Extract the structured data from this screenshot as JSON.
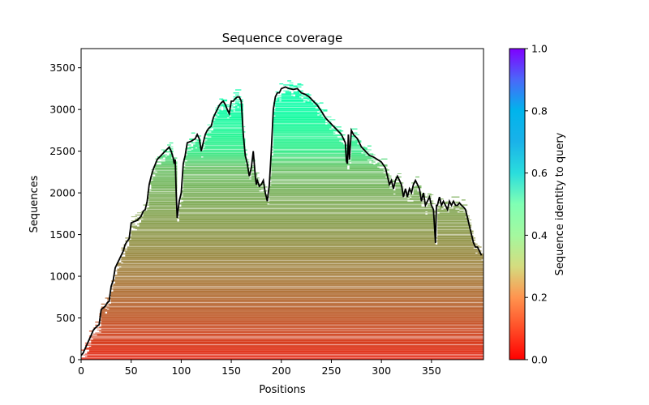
{
  "chart_data": {
    "type": "heatmap",
    "title": "Sequence coverage",
    "xlabel": "Positions",
    "ylabel": "Sequences",
    "xlim": [
      0,
      402
    ],
    "ylim": [
      0,
      3730
    ],
    "x_ticks": [
      0,
      50,
      100,
      150,
      200,
      250,
      300,
      350
    ],
    "x_tick_labels": [
      "0",
      "50",
      "100",
      "150",
      "200",
      "250",
      "300",
      "350"
    ],
    "y_ticks": [
      0,
      500,
      1000,
      1500,
      2000,
      2500,
      3000,
      3500
    ],
    "y_tick_labels": [
      "0",
      "500",
      "1000",
      "1500",
      "2000",
      "2500",
      "3000",
      "3500"
    ],
    "grid": false,
    "colorbar": {
      "label": "Sequence identity to query",
      "range": [
        0,
        1
      ],
      "ticks": [
        0.0,
        0.2,
        0.4,
        0.6,
        0.8,
        1.0
      ],
      "tick_labels": [
        "0.0",
        "0.2",
        "0.4",
        "0.6",
        "0.8",
        "1.0"
      ],
      "colormap": "rainbow"
    },
    "identity_by_sequence_rank": {
      "sequences": [
        0,
        500,
        1000,
        1500,
        2000,
        2300,
        2500,
        3000,
        3700
      ],
      "identity": [
        0.05,
        0.12,
        0.17,
        0.21,
        0.25,
        0.28,
        0.38,
        0.46,
        0.5
      ]
    },
    "coverage_line": {
      "name": "coverage",
      "color": "#000000",
      "x": [
        0,
        2,
        5,
        8,
        10,
        12,
        14,
        16,
        18,
        20,
        22,
        24,
        26,
        28,
        30,
        32,
        34,
        36,
        38,
        40,
        42,
        44,
        46,
        48,
        50,
        52,
        56,
        60,
        62,
        64,
        66,
        68,
        70,
        72,
        76,
        80,
        84,
        88,
        90,
        92,
        93,
        94,
        95,
        96,
        98,
        100,
        102,
        104,
        106,
        110,
        114,
        116,
        118,
        120,
        122,
        124,
        126,
        128,
        130,
        132,
        134,
        136,
        138,
        140,
        142,
        144,
        146,
        148,
        150,
        152,
        154,
        156,
        158,
        160,
        162,
        164,
        166,
        168,
        170,
        172,
        174,
        175,
        176,
        178,
        180,
        182,
        184,
        186,
        188,
        190,
        192,
        194,
        196,
        198,
        200,
        204,
        208,
        212,
        216,
        220,
        224,
        228,
        232,
        236,
        240,
        244,
        248,
        252,
        256,
        260,
        262,
        264,
        265,
        266,
        267,
        268,
        270,
        272,
        276,
        280,
        284,
        288,
        292,
        296,
        300,
        304,
        306,
        308,
        310,
        312,
        314,
        316,
        318,
        320,
        322,
        324,
        326,
        328,
        330,
        332,
        334,
        336,
        338,
        340,
        342,
        344,
        346,
        348,
        350,
        352,
        354,
        355,
        356,
        358,
        360,
        362,
        364,
        366,
        368,
        370,
        372,
        374,
        376,
        378,
        380,
        382,
        384,
        386,
        388,
        390,
        392,
        394,
        396,
        398,
        400
      ],
      "y": [
        50,
        80,
        160,
        240,
        290,
        350,
        380,
        400,
        420,
        600,
        620,
        640,
        680,
        700,
        880,
        950,
        1100,
        1150,
        1200,
        1250,
        1300,
        1380,
        1420,
        1450,
        1640,
        1650,
        1670,
        1720,
        1780,
        1800,
        1900,
        2100,
        2200,
        2280,
        2400,
        2450,
        2500,
        2550,
        2500,
        2420,
        2350,
        2400,
        2000,
        1700,
        1900,
        2000,
        2350,
        2450,
        2600,
        2620,
        2650,
        2700,
        2650,
        2500,
        2600,
        2700,
        2750,
        2780,
        2800,
        2900,
        2950,
        3000,
        3050,
        3080,
        3100,
        3060,
        3000,
        2950,
        3100,
        3100,
        3130,
        3150,
        3150,
        3100,
        2700,
        2450,
        2350,
        2200,
        2300,
        2500,
        2200,
        2100,
        2150,
        2080,
        2100,
        2150,
        2000,
        1900,
        2100,
        2500,
        3000,
        3150,
        3200,
        3200,
        3250,
        3270,
        3250,
        3240,
        3250,
        3200,
        3180,
        3150,
        3100,
        3050,
        2980,
        2900,
        2850,
        2800,
        2750,
        2700,
        2650,
        2600,
        2380,
        2350,
        2700,
        2400,
        2750,
        2700,
        2650,
        2550,
        2500,
        2450,
        2430,
        2400,
        2370,
        2300,
        2200,
        2100,
        2150,
        2050,
        2150,
        2200,
        2150,
        2100,
        1950,
        2050,
        1950,
        2050,
        2000,
        2100,
        2150,
        2100,
        2050,
        1900,
        2000,
        1850,
        1900,
        1950,
        1850,
        1800,
        1400,
        1850,
        1850,
        1950,
        1850,
        1900,
        1850,
        1800,
        1900,
        1850,
        1900,
        1850,
        1850,
        1880,
        1850,
        1830,
        1800,
        1700,
        1600,
        1500,
        1400,
        1350,
        1350,
        1300,
        1250
      ]
    }
  }
}
